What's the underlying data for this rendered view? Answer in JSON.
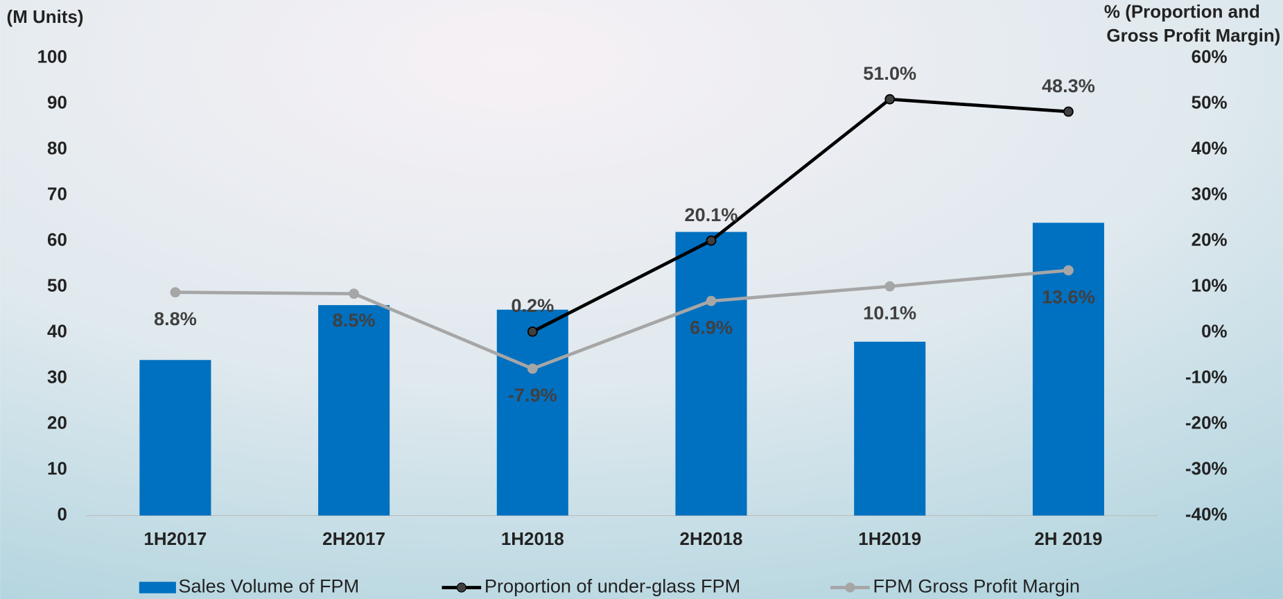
{
  "chart_data": {
    "type": "bar_line",
    "y_label": "(M Units)",
    "y2_label": [
      "% (Proportion and",
      "Gross Profit Margin)"
    ],
    "categories": [
      "1H2017",
      "2H2017",
      "1H2018",
      "2H2018",
      "1H2019",
      "2H 2019"
    ],
    "series": [
      {
        "name": "Sales Volume of FPM",
        "color": "#0070c0",
        "type": "bar",
        "values": [
          34,
          46,
          45,
          62,
          38,
          64
        ]
      },
      {
        "name": "Proportion of under-glass FPM",
        "color": "#000000",
        "type": "line",
        "axis": "y2",
        "values": [
          null,
          null,
          0.2,
          20.1,
          51.0,
          48.3
        ],
        "value_labels": [
          null,
          null,
          "0.2%",
          "20.1%",
          "51.0%",
          "48.3%"
        ]
      },
      {
        "name": "FPM Gross Profit Margin",
        "color": "#a6a6a6",
        "type": "line",
        "axis": "y2",
        "values": [
          8.8,
          8.5,
          -7.9,
          6.9,
          10.1,
          13.6
        ],
        "value_labels": [
          "8.8%",
          "8.5%",
          "-7.9%",
          "6.9%",
          "10.1%",
          "13.6%"
        ]
      }
    ],
    "ylim": [
      0,
      100
    ],
    "yticks": [
      0,
      10,
      20,
      30,
      40,
      50,
      60,
      70,
      80,
      90,
      100
    ],
    "y2lim": [
      -40,
      60
    ],
    "y2ticks": [
      {
        "value": -40,
        "label": "-40%"
      },
      {
        "value": -30,
        "label": "-30%"
      },
      {
        "value": -20,
        "label": "-20%"
      },
      {
        "value": -10,
        "label": "-10%"
      },
      {
        "value": 0,
        "label": "0%"
      },
      {
        "value": 10,
        "label": "10%"
      },
      {
        "value": 20,
        "label": "20%"
      },
      {
        "value": 30,
        "label": "30%"
      },
      {
        "value": 40,
        "label": "40%"
      },
      {
        "value": 50,
        "label": "50%"
      },
      {
        "value": 60,
        "label": "60%"
      }
    ],
    "legend": "bottom"
  }
}
